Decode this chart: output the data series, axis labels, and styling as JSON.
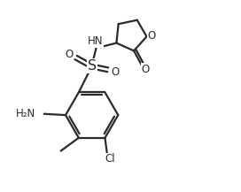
{
  "background_color": "#ffffff",
  "line_color": "#2a2a2a",
  "text_color": "#2a2a2a",
  "line_width": 1.6,
  "font_size": 8.5,
  "figsize": [
    2.72,
    2.17
  ],
  "dpi": 100,
  "xlim": [
    0,
    10
  ],
  "ylim": [
    0,
    8
  ]
}
